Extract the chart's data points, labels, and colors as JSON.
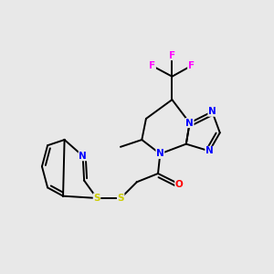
{
  "bg_color": "#e8e8e8",
  "bond_color": "#000000",
  "atom_colors": {
    "N": "#0000ff",
    "O": "#ff0000",
    "S": "#cccc00",
    "F": "#ff00ff",
    "C": "#000000"
  },
  "font_size": 7.5,
  "lw": 1.4
}
